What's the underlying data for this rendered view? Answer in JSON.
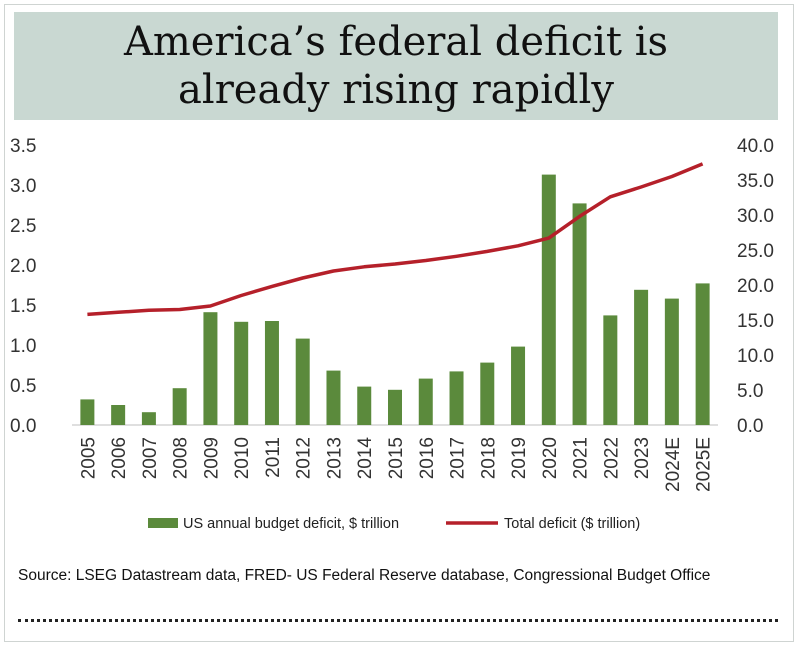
{
  "chart_data": {
    "type": "bar",
    "title": "America’s federal deficit is already rising rapidly",
    "categories": [
      "2005",
      "2006",
      "2007",
      "2008",
      "2009",
      "2010",
      "2011",
      "2012",
      "2013",
      "2014",
      "2015",
      "2016",
      "2017",
      "2018",
      "2019",
      "2020",
      "2021",
      "2022",
      "2023",
      "2024E",
      "2025E"
    ],
    "series": [
      {
        "name": "US annual budget deficit, $ trillion",
        "type": "bar",
        "axis": "left",
        "color": "#5b8a3c",
        "values": [
          0.32,
          0.25,
          0.16,
          0.46,
          1.41,
          1.29,
          1.3,
          1.08,
          0.68,
          0.48,
          0.44,
          0.58,
          0.67,
          0.78,
          0.98,
          3.13,
          2.77,
          1.37,
          1.69,
          1.58,
          1.77
        ]
      },
      {
        "name": "Total deficit ($ trillion)",
        "type": "line",
        "axis": "right",
        "color": "#b5202a",
        "values": [
          15.8,
          16.1,
          16.4,
          16.5,
          17.0,
          18.5,
          19.8,
          21.0,
          22.0,
          22.6,
          23.0,
          23.5,
          24.1,
          24.8,
          25.6,
          26.7,
          29.8,
          32.6,
          34.0,
          35.5,
          37.3
        ]
      }
    ],
    "y_left": {
      "ylim": [
        0,
        3.5
      ],
      "ticks": [
        "0.0",
        "0.5",
        "1.0",
        "1.5",
        "2.0",
        "2.5",
        "3.0",
        "3.5"
      ]
    },
    "y_right": {
      "ylim": [
        0,
        40
      ],
      "ticks": [
        "0.0",
        "5.0",
        "10.0",
        "15.0",
        "20.0",
        "25.0",
        "30.0",
        "35.0",
        "40.0"
      ]
    },
    "grid": false,
    "legend": "bottom",
    "source": "Source: LSEG Datastream data, FRED- US Federal Reserve database, Congressional Budget Office"
  }
}
